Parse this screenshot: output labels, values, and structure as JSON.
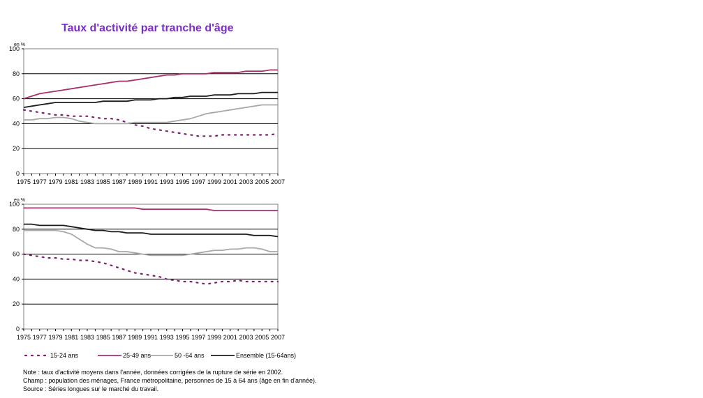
{
  "title": "Taux d'activité par tranche d'âge",
  "colors": {
    "s15_24": "#7b1f6e",
    "s25_49": "#a8306c",
    "s50_64": "#a8a8a8",
    "ensemble": "#1c1c1c",
    "title": "#7b2fc8"
  },
  "chart_data": [
    {
      "type": "line",
      "unit_label": "en %",
      "ylim": [
        0,
        100
      ],
      "yticks": [
        0,
        20,
        40,
        60,
        80,
        100
      ],
      "grid": true,
      "x": [
        1975,
        1976,
        1977,
        1978,
        1979,
        1980,
        1981,
        1982,
        1983,
        1984,
        1985,
        1986,
        1987,
        1988,
        1989,
        1990,
        1991,
        1992,
        1993,
        1994,
        1995,
        1996,
        1997,
        1998,
        1999,
        2000,
        2001,
        2002,
        2003,
        2004,
        2005,
        2006,
        2007
      ],
      "xtick_labels": [
        "1975",
        "1977",
        "1979",
        "1981",
        "1983",
        "1985",
        "1987",
        "1989",
        "1991",
        "1993",
        "1995",
        "1997",
        "1999",
        "2001",
        "2003",
        "2005",
        "2007"
      ],
      "series": [
        {
          "key": "s15_24",
          "name": "15-24 ans",
          "dash": "dotted",
          "values": [
            51,
            50,
            49,
            48,
            47,
            47,
            46,
            46,
            46,
            45,
            44,
            44,
            43,
            41,
            39,
            38,
            36,
            35,
            34,
            33,
            32,
            31,
            30,
            30,
            30,
            31,
            31,
            31,
            31,
            31,
            31,
            31,
            32
          ]
        },
        {
          "key": "s25_49",
          "name": "25-49 ans",
          "dash": "solid",
          "values": [
            60,
            62,
            64,
            65,
            66,
            67,
            68,
            69,
            70,
            71,
            72,
            73,
            74,
            74,
            75,
            76,
            77,
            78,
            79,
            79,
            80,
            80,
            80,
            80,
            81,
            81,
            81,
            81,
            82,
            82,
            82,
            83,
            83
          ]
        },
        {
          "key": "s50_64",
          "name": "50 -64 ans",
          "dash": "solid",
          "values": [
            43,
            43,
            44,
            44,
            45,
            45,
            44,
            42,
            41,
            40,
            40,
            40,
            40,
            40,
            41,
            41,
            41,
            41,
            41,
            42,
            43,
            44,
            46,
            48,
            49,
            50,
            51,
            52,
            53,
            54,
            55,
            55,
            55
          ]
        },
        {
          "key": "ensemble",
          "name": "Ensemble (15-64ans)",
          "dash": "solid",
          "values": [
            53,
            54,
            55,
            56,
            57,
            57,
            57,
            57,
            57,
            57,
            58,
            58,
            58,
            58,
            59,
            59,
            59,
            60,
            60,
            61,
            61,
            62,
            62,
            62,
            63,
            63,
            63,
            64,
            64,
            64,
            65,
            65,
            65
          ]
        }
      ]
    },
    {
      "type": "line",
      "unit_label": "en %",
      "ylim": [
        0,
        100
      ],
      "yticks": [
        0,
        20,
        40,
        60,
        80,
        100
      ],
      "grid": true,
      "x": [
        1975,
        1976,
        1977,
        1978,
        1979,
        1980,
        1981,
        1982,
        1983,
        1984,
        1985,
        1986,
        1987,
        1988,
        1989,
        1990,
        1991,
        1992,
        1993,
        1994,
        1995,
        1996,
        1997,
        1998,
        1999,
        2000,
        2001,
        2002,
        2003,
        2004,
        2005,
        2006,
        2007
      ],
      "xtick_labels": [
        "1975",
        "1977",
        "1979",
        "1981",
        "1983",
        "1985",
        "1987",
        "1989",
        "1991",
        "1993",
        "1995",
        "1997",
        "1999",
        "2001",
        "2003",
        "2005",
        "2007"
      ],
      "series": [
        {
          "key": "s15_24",
          "name": "15-24 ans",
          "dash": "dotted",
          "values": [
            60,
            59,
            58,
            57,
            57,
            56,
            56,
            55,
            55,
            54,
            53,
            51,
            49,
            47,
            45,
            44,
            43,
            42,
            40,
            39,
            38,
            38,
            37,
            36,
            37,
            38,
            38,
            39,
            38,
            38,
            38,
            38,
            38
          ]
        },
        {
          "key": "s25_49",
          "name": "25-49 ans",
          "dash": "solid",
          "values": [
            97,
            97,
            97,
            97,
            97,
            97,
            97,
            97,
            97,
            97,
            97,
            97,
            97,
            97,
            97,
            96,
            96,
            96,
            96,
            96,
            96,
            96,
            96,
            96,
            95,
            95,
            95,
            95,
            95,
            95,
            95,
            95,
            95
          ]
        },
        {
          "key": "s50_64",
          "name": "50 -64 ans",
          "dash": "solid",
          "values": [
            79,
            79,
            79,
            79,
            79,
            78,
            76,
            72,
            68,
            65,
            65,
            64,
            62,
            62,
            61,
            60,
            59,
            59,
            59,
            59,
            59,
            60,
            61,
            62,
            63,
            63,
            64,
            64,
            65,
            65,
            64,
            62,
            62
          ]
        },
        {
          "key": "ensemble",
          "name": "Ensemble (15-64ans)",
          "dash": "solid",
          "values": [
            84,
            84,
            83,
            83,
            83,
            83,
            82,
            81,
            80,
            79,
            79,
            78,
            78,
            77,
            77,
            77,
            76,
            76,
            76,
            76,
            76,
            76,
            76,
            76,
            76,
            76,
            76,
            76,
            76,
            75,
            75,
            75,
            74
          ]
        }
      ]
    }
  ],
  "legend": [
    {
      "key": "s15_24",
      "label": "15-24 ans"
    },
    {
      "key": "s25_49",
      "label": "25-49 ans"
    },
    {
      "key": "s50_64",
      "label": "50 -64 ans"
    },
    {
      "key": "ensemble",
      "label": "Ensemble (15-64ans)"
    }
  ],
  "notes": [
    "Note : taux d'activité moyens dans l'année, données corrigées de la rupture de série en 2002.",
    "Champ : population des ménages, France métropolitaine, personnes de 15 à 64 ans (âge en fin d'année).",
    "Source : Séries longues sur le marché du travail."
  ]
}
